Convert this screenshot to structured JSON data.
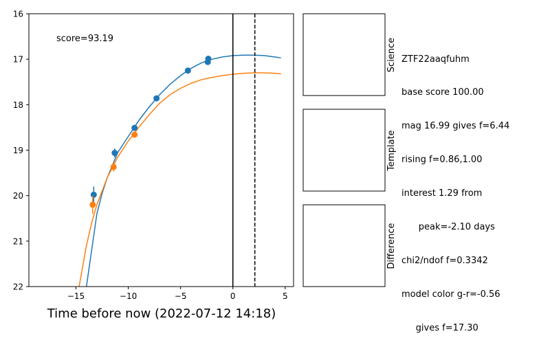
{
  "chart_data": {
    "type": "scatter",
    "xlabel": "Time before now (2022-07-12 14:18)",
    "ylabel": "",
    "xlim": [
      -19.5,
      5.8
    ],
    "ylim": [
      22,
      16
    ],
    "y_inverted": true,
    "xticks": [
      -15,
      -10,
      -5,
      0,
      5
    ],
    "yticks": [
      16,
      17,
      18,
      19,
      20,
      21,
      22
    ],
    "grid": false,
    "annotation": "score=93.19",
    "vlines": [
      {
        "x": 0,
        "style": "solid"
      },
      {
        "x": 2.1,
        "style": "dashed"
      }
    ],
    "series": [
      {
        "color": "#1f77b4",
        "points": [
          {
            "x": -13.3,
            "y": 19.98,
            "err": 0.18
          },
          {
            "x": -11.3,
            "y": 19.06,
            "err": 0.1
          },
          {
            "x": -9.4,
            "y": 18.51,
            "err": 0.05
          },
          {
            "x": -7.3,
            "y": 17.86,
            "err": 0.03
          },
          {
            "x": -4.3,
            "y": 17.25,
            "err": 0.03
          },
          {
            "x": -2.4,
            "y": 17.06,
            "err": 0.02
          },
          {
            "x": -2.35,
            "y": 16.99,
            "err": 0.02
          }
        ],
        "model": [
          [
            -14.0,
            22.0
          ],
          [
            -13.5,
            21.2
          ],
          [
            -13.0,
            20.4
          ],
          [
            -12.5,
            19.95
          ],
          [
            -12.0,
            19.6
          ],
          [
            -11.0,
            19.05
          ],
          [
            -10.0,
            18.7
          ],
          [
            -9.0,
            18.35
          ],
          [
            -8.0,
            18.05
          ],
          [
            -7.0,
            17.78
          ],
          [
            -6.0,
            17.55
          ],
          [
            -5.0,
            17.36
          ],
          [
            -4.0,
            17.2
          ],
          [
            -3.0,
            17.08
          ],
          [
            -2.0,
            17.0
          ],
          [
            -1.0,
            16.95
          ],
          [
            0.0,
            16.92
          ],
          [
            1.0,
            16.91
          ],
          [
            2.0,
            16.91
          ],
          [
            3.0,
            16.92
          ],
          [
            4.0,
            16.95
          ],
          [
            4.6,
            16.97
          ]
        ]
      },
      {
        "color": "#ff7f0e",
        "points": [
          {
            "x": -13.4,
            "y": 20.2,
            "err": 0.2
          },
          {
            "x": -11.4,
            "y": 19.37,
            "err": 0.1
          },
          {
            "x": -9.4,
            "y": 18.66,
            "err": 0.05
          }
        ],
        "model": [
          [
            -14.7,
            22.0
          ],
          [
            -14.0,
            21.1
          ],
          [
            -13.5,
            20.6
          ],
          [
            -13.0,
            20.2
          ],
          [
            -12.0,
            19.6
          ],
          [
            -11.0,
            19.15
          ],
          [
            -10.0,
            18.8
          ],
          [
            -9.0,
            18.5
          ],
          [
            -8.0,
            18.22
          ],
          [
            -7.0,
            17.97
          ],
          [
            -6.0,
            17.78
          ],
          [
            -5.0,
            17.64
          ],
          [
            -4.0,
            17.53
          ],
          [
            -3.0,
            17.45
          ],
          [
            -2.0,
            17.4
          ],
          [
            -1.0,
            17.36
          ],
          [
            0.0,
            17.33
          ],
          [
            1.0,
            17.31
          ],
          [
            2.0,
            17.3
          ],
          [
            3.0,
            17.3
          ],
          [
            4.0,
            17.31
          ],
          [
            4.6,
            17.32
          ]
        ]
      }
    ]
  },
  "panels": [
    {
      "label": "Science"
    },
    {
      "label": "Template"
    },
    {
      "label": "Difference"
    }
  ],
  "info_lines": [
    "ZTF22aaqfuhm",
    "base score 100.00",
    "mag 16.99 gives f=6.44",
    "rising f=0.86,1.00",
    "interest 1.29 from",
    "      peak=-2.10 days",
    "chi2/ndof f=0.3342",
    "model color g-r=-0.56",
    "     gives f=17.30"
  ],
  "colors": {
    "series_blue": "#1f77b4",
    "series_orange": "#ff7f0e",
    "axes": "#000000"
  }
}
